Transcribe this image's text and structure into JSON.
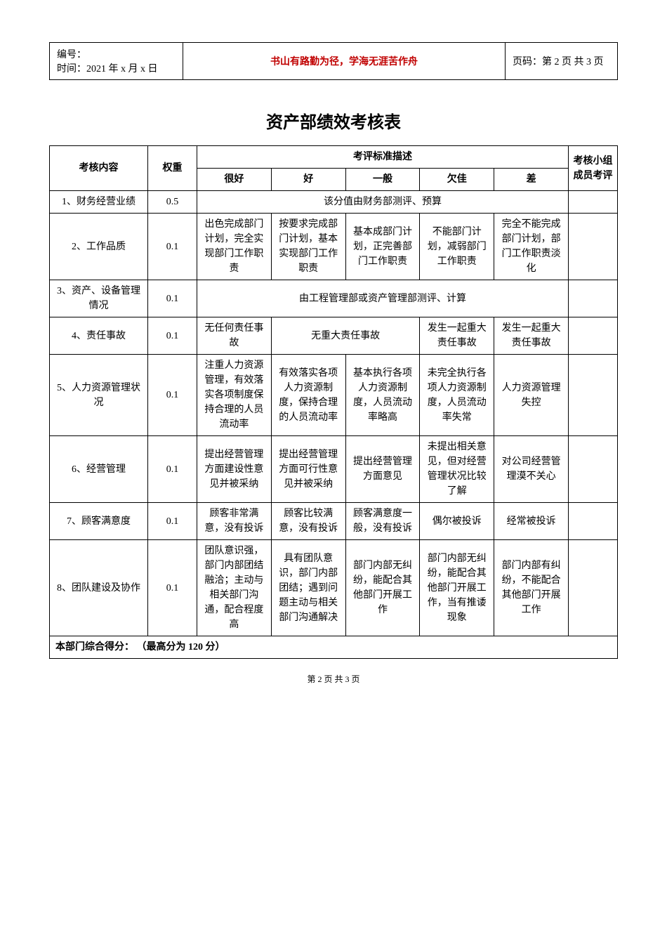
{
  "header": {
    "id_label": "编号：",
    "time_label": "时间：",
    "time_value": "2021 年 x 月 x 日",
    "center_text": "书山有路勤为径，学海无涯苦作舟",
    "page_label": "页码：",
    "page_value": "第 2 页 共 3 页"
  },
  "title": "资产部绩效考核表",
  "table_headers": {
    "content": "考核内容",
    "weight": "权重",
    "criteria": "考评标准描述",
    "score": "考核小组成员考评",
    "levels": [
      "很好",
      "好",
      "一般",
      "欠佳",
      "差"
    ]
  },
  "rows": [
    {
      "label": "1、财务经营业绩",
      "weight": "0.5",
      "merged_text": "该分值由财务部测评、预算",
      "merged": true
    },
    {
      "label": "2、工作品质",
      "weight": "0.1",
      "cells": [
        "出色完成部门计划，完全实现部门工作职责",
        "按要求完成部门计划，基本实现部门工作职责",
        "基本成部门计划，正完善部门工作职责",
        "不能部门计划，减弱部门工作职责",
        "完全不能完成部门计划，部门工作职责淡化"
      ]
    },
    {
      "label": "3、资产、设备管理情况",
      "weight": "0.1",
      "merged_text": "由工程管理部或资产管理部测评、计算",
      "merged": true
    },
    {
      "label": "4、责任事故",
      "weight": "0.1",
      "partial": true,
      "c0": "无任何责任事故",
      "c12_merge": "无重大责任事故",
      "c3": "发生一起重大责任事故",
      "c4": "发生一起重大责任事故"
    },
    {
      "label": "5、人力资源管理状况",
      "weight": "0.1",
      "cells": [
        "注重人力资源管理，有效落实各项制度保持合理的人员流动率",
        "有效落实各项人力资源制度，保持合理的人员流动率",
        "基本执行各项人力资源制度，人员流动率略高",
        "未完全执行各项人力资源制度，人员流动率失常",
        "人力资源管理失控"
      ]
    },
    {
      "label": "6、经营管理",
      "weight": "0.1",
      "cells": [
        "提出经营管理方面建设性意见并被采纳",
        "提出经营管理方面可行性意见并被采纳",
        "提出经营管理方面意见",
        "未提出相关意见，但对经营管理状况比较了解",
        "对公司经营管理漠不关心"
      ]
    },
    {
      "label": "7、顾客满意度",
      "weight": "0.1",
      "cells": [
        "顾客非常满意，没有投诉",
        "顾客比较满意，没有投诉",
        "顾客满意度一般，没有投诉",
        "偶尔被投诉",
        "经常被投诉"
      ]
    },
    {
      "label": "8、团队建设及协作",
      "weight": "0.1",
      "cells": [
        "团队意识强，部门内部团结融洽；主动与相关部门沟通，配合程度高",
        "具有团队意识，部门内部团结；遇到问题主动与相关部门沟通解决",
        "部门内部无纠纷，能配合其他部门开展工作",
        "部门内部无纠纷，能配合其他部门开展工作，当有推诿现象",
        "部门内部有纠纷，不能配合其他部门开展工作"
      ]
    }
  ],
  "summary": {
    "prefix": "本部门综合得分： （",
    "bold_part": "最高分为 120 分",
    "suffix": "）"
  },
  "footer": "第 2 页 共 3 页",
  "style": {
    "accent_color": "#c00000",
    "border_color": "#000000",
    "bg_color": "#ffffff",
    "base_font_size": 14,
    "title_font_size": 24
  }
}
